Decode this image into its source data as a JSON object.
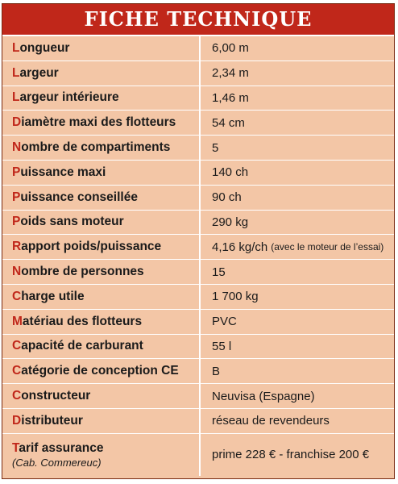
{
  "title": "FICHE TECHNIQUE",
  "rows": [
    {
      "first": "L",
      "rest": "ongueur",
      "value": "6,00 m"
    },
    {
      "first": "L",
      "rest": "argeur",
      "value": "2,34 m"
    },
    {
      "first": "L",
      "rest": "argeur intérieure",
      "value": "1,46 m"
    },
    {
      "first": "D",
      "rest": "iamètre maxi des flotteurs",
      "value": "54 cm"
    },
    {
      "first": "N",
      "rest": "ombre de compartiments",
      "value": "5"
    },
    {
      "first": "P",
      "rest": "uissance maxi",
      "value": "140 ch"
    },
    {
      "first": "P",
      "rest": "uissance conseillée",
      "value": "90 ch"
    },
    {
      "first": "P",
      "rest": "oids sans moteur",
      "value": "290 kg"
    },
    {
      "first": "R",
      "rest": "apport poids/puissance",
      "value": "4,16 kg/ch",
      "note": "(avec le moteur de l’essai)"
    },
    {
      "first": "N",
      "rest": "ombre de personnes",
      "value": "15"
    },
    {
      "first": "C",
      "rest": "harge utile",
      "value": "1 700 kg"
    },
    {
      "first": "M",
      "rest": "atériau des flotteurs",
      "value": "PVC"
    },
    {
      "first": "C",
      "rest": "apacité de carburant",
      "value": "55 l"
    },
    {
      "first": "C",
      "rest": "atégorie de conception CE",
      "value": "B"
    },
    {
      "first": "C",
      "rest": "onstructeur",
      "value": "Neuvisa (Espagne)"
    },
    {
      "first": "D",
      "rest": "istributeur",
      "value": "réseau de revendeurs"
    },
    {
      "first": "T",
      "rest": "arif assurance",
      "sub": "(Cab. Commereuc)",
      "value": "prime 228 € - franchise 200 €"
    }
  ],
  "colors": {
    "header_bg": "#c0271a",
    "row_bg": "#f3c6a6",
    "accent_letter": "#c0271a"
  }
}
